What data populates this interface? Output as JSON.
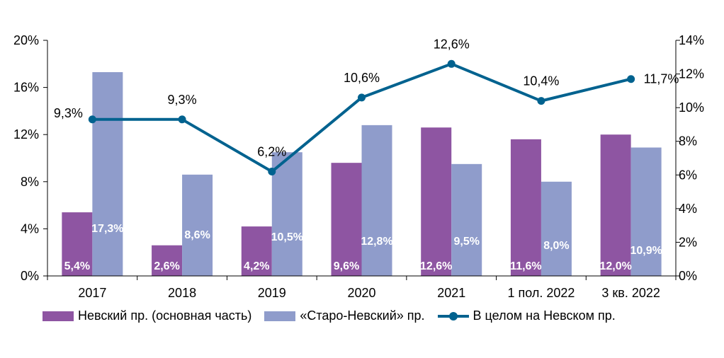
{
  "chart_data": {
    "type": "bar",
    "categories": [
      "2017",
      "2018",
      "2019",
      "2020",
      "2021",
      "1 пол. 2022",
      "3 кв. 2022"
    ],
    "series": [
      {
        "name": "Невский пр. (основная часть)",
        "type": "bar",
        "axis": "left",
        "color": "#8e55a2",
        "values": [
          5.4,
          2.6,
          4.2,
          9.6,
          12.6,
          11.6,
          12.0
        ],
        "labels": [
          "5,4%",
          "2,6%",
          "4,2%",
          "9,6%",
          "12,6%",
          "11,6%",
          "12,0%"
        ]
      },
      {
        "name": "«Старо-Невский» пр.",
        "type": "bar",
        "axis": "left",
        "color": "#8f9ccb",
        "values": [
          17.3,
          8.6,
          10.5,
          12.8,
          9.5,
          8.0,
          10.9
        ],
        "labels": [
          "17,3%",
          "8,6%",
          "10,5%",
          "12,8%",
          "9,5%",
          "8,0%",
          "10,9%"
        ]
      },
      {
        "name": "В целом на Невском пр.",
        "type": "line",
        "axis": "right",
        "color": "#00628f",
        "values": [
          9.3,
          9.3,
          6.2,
          10.6,
          12.6,
          10.4,
          11.7
        ],
        "labels": [
          "9,3%",
          "9,3%",
          "6,2%",
          "10,6%",
          "12,6%",
          "10,4%",
          "11,7%"
        ]
      }
    ],
    "y_left": {
      "ylim": [
        0,
        20
      ],
      "ticks": [
        "0%",
        "4%",
        "8%",
        "12%",
        "16%",
        "20%"
      ]
    },
    "y_right": {
      "ylim": [
        0,
        14
      ],
      "ticks": [
        "0%",
        "2%",
        "4%",
        "6%",
        "8%",
        "10%",
        "12%",
        "14%"
      ]
    },
    "grid": false,
    "legend": "bottom"
  }
}
